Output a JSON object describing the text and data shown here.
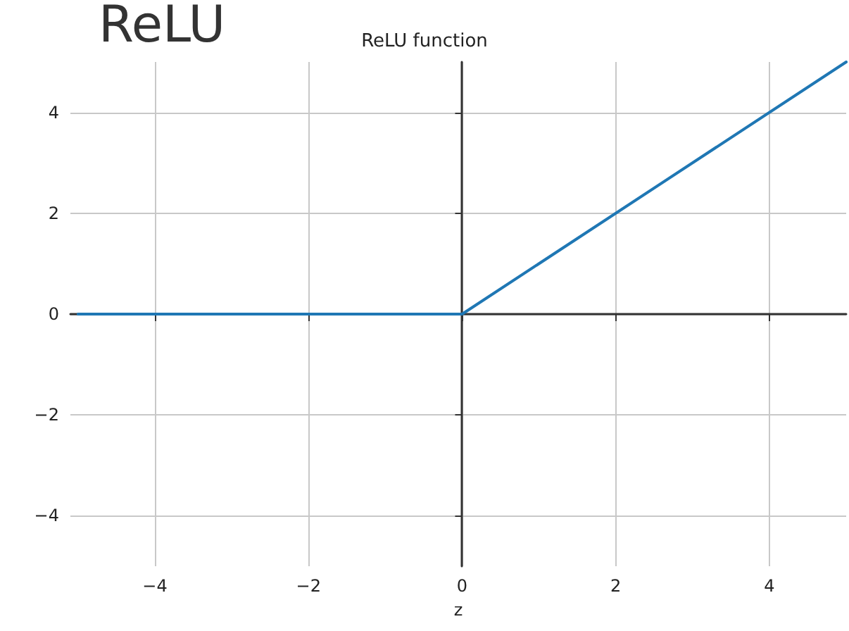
{
  "chart_data": {
    "type": "line",
    "title": "ReLU function",
    "xlabel": "z",
    "annotations": [
      "ReLU"
    ],
    "x": [
      -5,
      0,
      5
    ],
    "series": [
      {
        "color": "#1f77b4",
        "values": [
          0,
          0,
          5
        ]
      }
    ],
    "xlim": [
      -5.1,
      5
    ],
    "xticks": [
      -4,
      -2,
      0,
      2,
      4
    ],
    "ylim": [
      -5,
      5
    ],
    "yticks": [
      -4,
      -2,
      0,
      2,
      4
    ],
    "grid": true,
    "marker": "none",
    "line_style": "solid"
  }
}
